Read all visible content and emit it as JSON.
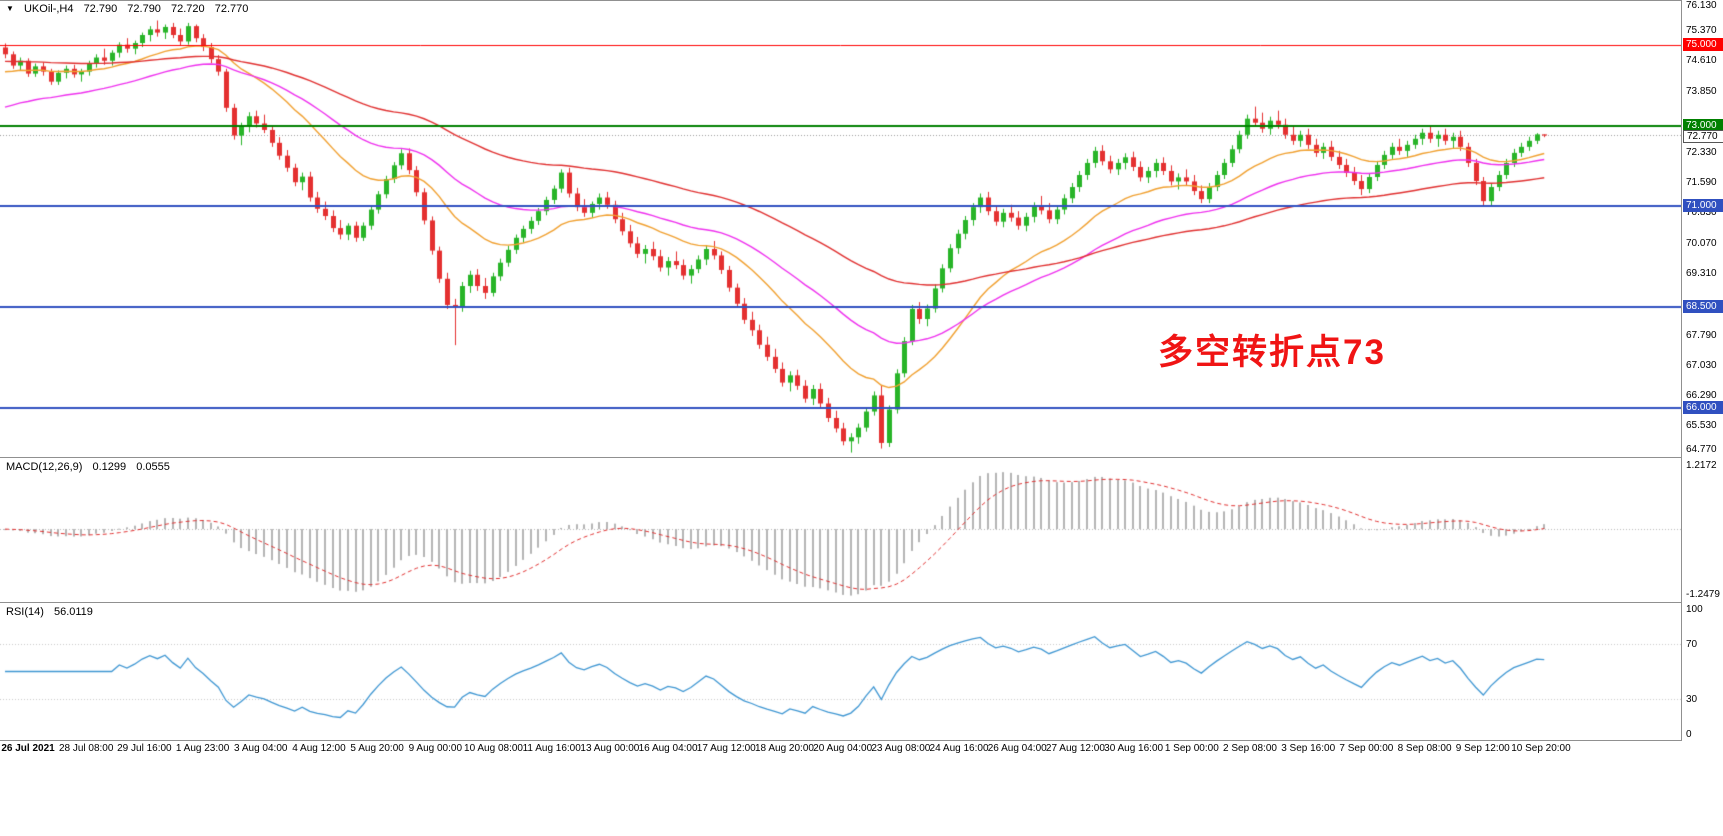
{
  "header": {
    "marker_icon": "▼",
    "symbol_label": "UKOil-,H4",
    "open": "72.790",
    "high": "72.790",
    "low": "72.720",
    "close": "72.770"
  },
  "annotation": {
    "text": "多空转折点73",
    "color": "#F01414"
  },
  "chart_data": {
    "type": "candlestick",
    "symbol": "UKOil-",
    "timeframe": "H4",
    "price_min": 64.77,
    "price_max": 76.13,
    "up_color": "#28B428",
    "down_color": "#E43030",
    "y_ticks": [
      {
        "v": 76.13,
        "label": "76.130"
      },
      {
        "v": 75.37,
        "label": "75.370"
      },
      {
        "v": 74.61,
        "label": "74.610"
      },
      {
        "v": 73.85,
        "label": "73.850"
      },
      {
        "v": 72.33,
        "label": "72.330"
      },
      {
        "v": 71.59,
        "label": "71.590"
      },
      {
        "v": 70.83,
        "label": "70.830"
      },
      {
        "v": 70.07,
        "label": "70.070"
      },
      {
        "v": 69.31,
        "label": "69.310"
      },
      {
        "v": 67.79,
        "label": "67.790"
      },
      {
        "v": 67.03,
        "label": "67.030"
      },
      {
        "v": 66.29,
        "label": "66.290"
      },
      {
        "v": 65.53,
        "label": "65.530"
      },
      {
        "v": 64.77,
        "label": "64.770"
      }
    ],
    "hlines": [
      {
        "price": 75.0,
        "label": "75.000",
        "color": "#FF0000",
        "width": 1
      },
      {
        "price": 73.0,
        "label": "73.000",
        "color": "#008000",
        "width": 2
      },
      {
        "price": 71.0,
        "label": "71.000",
        "color": "#3050C0",
        "width": 2
      },
      {
        "price": 68.5,
        "label": "68.500",
        "color": "#3050C0",
        "width": 2
      },
      {
        "price": 66.0,
        "label": "66.000",
        "color": "#3050C0",
        "width": 2
      }
    ],
    "current_price": {
      "value": 72.77,
      "label": "72.770"
    },
    "moving_averages": [
      {
        "period": 20,
        "color": "#F0A030",
        "seed": 74.3
      },
      {
        "period": 40,
        "color": "#EE30EE",
        "seed": 73.4
      },
      {
        "period": 80,
        "color": "#E03030",
        "seed": 74.6
      }
    ],
    "x_labels": [
      "26 Jul 2021",
      "28 Jul 08:00",
      "29 Jul 16:00",
      "1 Aug 23:00",
      "3 Aug 04:00",
      "4 Aug 12:00",
      "5 Aug 20:00",
      "9 Aug 00:00",
      "10 Aug 08:00",
      "11 Aug 16:00",
      "13 Aug 00:00",
      "16 Aug 04:00",
      "17 Aug 12:00",
      "18 Aug 20:00",
      "20 Aug 04:00",
      "23 Aug 08:00",
      "24 Aug 16:00",
      "26 Aug 04:00",
      "27 Aug 12:00",
      "30 Aug 16:00",
      "1 Sep 00:00",
      "2 Sep 08:00",
      "3 Sep 16:00",
      "7 Sep 00:00",
      "8 Sep 08:00",
      "9 Sep 12:00",
      "10 Sep 20:00"
    ],
    "candles": [
      [
        74.95,
        75.05,
        74.68,
        74.78
      ],
      [
        74.78,
        74.85,
        74.42,
        74.5
      ],
      [
        74.5,
        74.7,
        74.38,
        74.62
      ],
      [
        74.62,
        74.68,
        74.22,
        74.3
      ],
      [
        74.3,
        74.55,
        74.22,
        74.48
      ],
      [
        74.48,
        74.58,
        74.25,
        74.35
      ],
      [
        74.35,
        74.42,
        74.02,
        74.1
      ],
      [
        74.1,
        74.38,
        74.02,
        74.32
      ],
      [
        74.32,
        74.5,
        74.18,
        74.42
      ],
      [
        74.42,
        74.52,
        74.2,
        74.28
      ],
      [
        74.28,
        74.42,
        74.1,
        74.35
      ],
      [
        74.35,
        74.62,
        74.25,
        74.55
      ],
      [
        74.55,
        74.78,
        74.45,
        74.7
      ],
      [
        74.7,
        74.92,
        74.52,
        74.62
      ],
      [
        74.62,
        74.88,
        74.5,
        74.82
      ],
      [
        74.82,
        75.08,
        74.7,
        75.02
      ],
      [
        75.02,
        75.18,
        74.82,
        74.92
      ],
      [
        74.92,
        75.12,
        74.78,
        75.06
      ],
      [
        75.06,
        75.32,
        74.96,
        75.26
      ],
      [
        75.26,
        75.48,
        75.1,
        75.4
      ],
      [
        75.4,
        75.62,
        75.22,
        75.32
      ],
      [
        75.32,
        75.52,
        75.16,
        75.46
      ],
      [
        75.46,
        75.56,
        75.18,
        75.26
      ],
      [
        75.26,
        75.42,
        75.0,
        75.1
      ],
      [
        75.1,
        75.56,
        75.02,
        75.48
      ],
      [
        75.48,
        75.52,
        75.08,
        75.18
      ],
      [
        75.18,
        75.28,
        74.86,
        74.96
      ],
      [
        74.96,
        75.06,
        74.56,
        74.66
      ],
      [
        74.66,
        74.76,
        74.25,
        74.35
      ],
      [
        74.35,
        74.42,
        73.35,
        73.45
      ],
      [
        73.45,
        73.55,
        72.66,
        72.76
      ],
      [
        72.76,
        73.08,
        72.52,
        72.98
      ],
      [
        72.98,
        73.34,
        72.84,
        73.24
      ],
      [
        73.24,
        73.38,
        72.96,
        73.06
      ],
      [
        73.06,
        73.28,
        72.82,
        72.9
      ],
      [
        72.9,
        73.0,
        72.48,
        72.58
      ],
      [
        72.58,
        72.72,
        72.16,
        72.26
      ],
      [
        72.26,
        72.4,
        71.86,
        71.96
      ],
      [
        71.96,
        72.06,
        71.5,
        71.6
      ],
      [
        71.6,
        71.84,
        71.4,
        71.74
      ],
      [
        71.74,
        71.86,
        71.12,
        71.22
      ],
      [
        71.22,
        71.36,
        70.84,
        70.94
      ],
      [
        70.94,
        71.12,
        70.66,
        70.76
      ],
      [
        70.76,
        70.9,
        70.36,
        70.46
      ],
      [
        70.46,
        70.66,
        70.18,
        70.3
      ],
      [
        70.3,
        70.58,
        70.16,
        70.52
      ],
      [
        70.52,
        70.62,
        70.12,
        70.22
      ],
      [
        70.22,
        70.6,
        70.14,
        70.52
      ],
      [
        70.52,
        71.0,
        70.42,
        70.92
      ],
      [
        70.92,
        71.38,
        70.82,
        71.3
      ],
      [
        71.3,
        71.76,
        71.2,
        71.68
      ],
      [
        71.68,
        72.1,
        71.58,
        72.02
      ],
      [
        72.02,
        72.42,
        71.92,
        72.32
      ],
      [
        72.32,
        72.44,
        71.8,
        71.9
      ],
      [
        71.9,
        72.0,
        71.25,
        71.35
      ],
      [
        71.35,
        71.45,
        70.55,
        70.65
      ],
      [
        70.65,
        70.75,
        69.8,
        69.9
      ],
      [
        69.9,
        70.0,
        69.1,
        69.2
      ],
      [
        69.2,
        69.35,
        68.45,
        68.55
      ],
      [
        68.55,
        68.7,
        67.55,
        68.48
      ],
      [
        68.48,
        69.12,
        68.38,
        69.02
      ],
      [
        69.02,
        69.4,
        68.85,
        69.3
      ],
      [
        69.3,
        69.44,
        68.9,
        69.02
      ],
      [
        69.02,
        69.22,
        68.7,
        68.85
      ],
      [
        68.85,
        69.35,
        68.76,
        69.26
      ],
      [
        69.26,
        69.7,
        69.15,
        69.6
      ],
      [
        69.6,
        70.02,
        69.5,
        69.92
      ],
      [
        69.92,
        70.3,
        69.82,
        70.22
      ],
      [
        70.22,
        70.52,
        70.1,
        70.44
      ],
      [
        70.44,
        70.74,
        70.32,
        70.64
      ],
      [
        70.64,
        70.96,
        70.54,
        70.88
      ],
      [
        70.88,
        71.24,
        70.78,
        71.16
      ],
      [
        71.16,
        71.52,
        71.06,
        71.44
      ],
      [
        71.44,
        71.92,
        71.34,
        71.84
      ],
      [
        71.84,
        71.96,
        71.22,
        71.32
      ],
      [
        71.32,
        71.46,
        70.88,
        70.98
      ],
      [
        70.98,
        71.18,
        70.74,
        70.84
      ],
      [
        70.84,
        71.12,
        70.72,
        71.06
      ],
      [
        71.06,
        71.32,
        70.92,
        71.22
      ],
      [
        71.22,
        71.36,
        70.94,
        71.04
      ],
      [
        71.04,
        71.14,
        70.58,
        70.68
      ],
      [
        70.68,
        70.84,
        70.28,
        70.38
      ],
      [
        70.38,
        70.54,
        69.98,
        70.08
      ],
      [
        70.08,
        70.24,
        69.72,
        69.82
      ],
      [
        69.82,
        70.04,
        69.58,
        69.94
      ],
      [
        69.94,
        70.12,
        69.66,
        69.76
      ],
      [
        69.76,
        69.92,
        69.38,
        69.48
      ],
      [
        69.48,
        69.74,
        69.28,
        69.64
      ],
      [
        69.64,
        69.88,
        69.44,
        69.54
      ],
      [
        69.54,
        69.68,
        69.18,
        69.28
      ],
      [
        69.28,
        69.54,
        69.08,
        69.44
      ],
      [
        69.44,
        69.78,
        69.34,
        69.68
      ],
      [
        69.68,
        70.04,
        69.54,
        69.94
      ],
      [
        69.94,
        70.14,
        69.68,
        69.78
      ],
      [
        69.78,
        69.88,
        69.32,
        69.42
      ],
      [
        69.42,
        69.52,
        68.88,
        68.98
      ],
      [
        68.98,
        69.08,
        68.48,
        68.58
      ],
      [
        68.58,
        68.72,
        68.08,
        68.18
      ],
      [
        68.18,
        68.38,
        67.78,
        67.92
      ],
      [
        67.92,
        68.06,
        67.46,
        67.56
      ],
      [
        67.56,
        67.76,
        67.16,
        67.26
      ],
      [
        67.26,
        67.46,
        66.86,
        66.96
      ],
      [
        66.96,
        67.12,
        66.52,
        66.62
      ],
      [
        66.62,
        66.9,
        66.4,
        66.8
      ],
      [
        66.8,
        66.94,
        66.44,
        66.54
      ],
      [
        66.54,
        66.68,
        66.12,
        66.22
      ],
      [
        66.22,
        66.56,
        66.06,
        66.46
      ],
      [
        66.46,
        66.6,
        66.0,
        66.1
      ],
      [
        66.1,
        66.24,
        65.64,
        65.74
      ],
      [
        65.74,
        65.92,
        65.38,
        65.48
      ],
      [
        65.48,
        65.62,
        65.06,
        65.16
      ],
      [
        65.16,
        65.36,
        64.88,
        65.26
      ],
      [
        65.26,
        65.6,
        65.1,
        65.5
      ],
      [
        65.5,
        66.0,
        65.4,
        65.9
      ],
      [
        65.9,
        66.4,
        65.8,
        66.3
      ],
      [
        66.3,
        66.55,
        64.98,
        65.12
      ],
      [
        65.12,
        66.05,
        65.02,
        65.95
      ],
      [
        65.95,
        66.95,
        65.85,
        66.85
      ],
      [
        66.85,
        67.75,
        66.75,
        67.65
      ],
      [
        67.65,
        68.55,
        67.55,
        68.45
      ],
      [
        68.45,
        68.62,
        68.08,
        68.2
      ],
      [
        68.2,
        68.56,
        68.02,
        68.46
      ],
      [
        68.46,
        69.06,
        68.36,
        68.96
      ],
      [
        68.96,
        69.56,
        68.86,
        69.46
      ],
      [
        69.46,
        70.06,
        69.36,
        69.96
      ],
      [
        69.96,
        70.42,
        69.82,
        70.32
      ],
      [
        70.32,
        70.76,
        70.18,
        70.66
      ],
      [
        70.66,
        71.08,
        70.52,
        70.98
      ],
      [
        70.98,
        71.32,
        70.84,
        71.22
      ],
      [
        71.22,
        71.36,
        70.78,
        70.88
      ],
      [
        70.88,
        71.02,
        70.52,
        70.62
      ],
      [
        70.62,
        70.94,
        70.48,
        70.84
      ],
      [
        70.84,
        71.04,
        70.62,
        70.72
      ],
      [
        70.72,
        70.88,
        70.42,
        70.52
      ],
      [
        70.52,
        70.84,
        70.38,
        70.74
      ],
      [
        70.74,
        71.1,
        70.6,
        71.0
      ],
      [
        71.0,
        71.26,
        70.8,
        70.9
      ],
      [
        70.9,
        71.08,
        70.58,
        70.68
      ],
      [
        70.68,
        71.02,
        70.56,
        70.92
      ],
      [
        70.92,
        71.3,
        70.8,
        71.2
      ],
      [
        71.2,
        71.58,
        71.08,
        71.48
      ],
      [
        71.48,
        71.88,
        71.36,
        71.78
      ],
      [
        71.78,
        72.18,
        71.66,
        72.08
      ],
      [
        72.08,
        72.48,
        71.96,
        72.38
      ],
      [
        72.38,
        72.52,
        72.02,
        72.12
      ],
      [
        72.12,
        72.26,
        71.82,
        71.92
      ],
      [
        71.92,
        72.18,
        71.78,
        72.08
      ],
      [
        72.08,
        72.32,
        71.92,
        72.22
      ],
      [
        72.22,
        72.36,
        71.88,
        71.98
      ],
      [
        71.98,
        72.12,
        71.62,
        71.72
      ],
      [
        71.72,
        71.98,
        71.58,
        71.88
      ],
      [
        71.88,
        72.18,
        71.72,
        72.08
      ],
      [
        72.08,
        72.22,
        71.78,
        71.88
      ],
      [
        71.88,
        72.02,
        71.52,
        71.62
      ],
      [
        71.62,
        71.82,
        71.42,
        71.72
      ],
      [
        71.72,
        71.92,
        71.52,
        71.62
      ],
      [
        71.62,
        71.78,
        71.28,
        71.38
      ],
      [
        71.38,
        71.52,
        71.08,
        71.18
      ],
      [
        71.18,
        71.58,
        71.08,
        71.48
      ],
      [
        71.48,
        71.88,
        71.38,
        71.78
      ],
      [
        71.78,
        72.18,
        71.68,
        72.08
      ],
      [
        72.08,
        72.52,
        71.98,
        72.42
      ],
      [
        72.42,
        72.88,
        72.32,
        72.78
      ],
      [
        72.78,
        73.28,
        72.68,
        73.18
      ],
      [
        73.18,
        73.48,
        72.98,
        73.08
      ],
      [
        73.08,
        73.33,
        72.83,
        72.93
      ],
      [
        72.93,
        73.23,
        72.78,
        73.13
      ],
      [
        73.13,
        73.38,
        72.93,
        73.03
      ],
      [
        73.03,
        73.18,
        72.68,
        72.78
      ],
      [
        72.78,
        72.98,
        72.53,
        72.63
      ],
      [
        72.63,
        72.88,
        72.48,
        72.78
      ],
      [
        72.78,
        72.93,
        72.43,
        72.53
      ],
      [
        72.53,
        72.68,
        72.23,
        72.33
      ],
      [
        72.33,
        72.58,
        72.18,
        72.48
      ],
      [
        72.48,
        72.63,
        72.13,
        72.23
      ],
      [
        72.23,
        72.38,
        71.93,
        72.03
      ],
      [
        72.03,
        72.18,
        71.73,
        71.83
      ],
      [
        71.83,
        71.98,
        71.53,
        71.63
      ],
      [
        71.63,
        71.78,
        71.28,
        71.43
      ],
      [
        71.43,
        71.83,
        71.33,
        71.73
      ],
      [
        71.73,
        72.13,
        71.63,
        72.03
      ],
      [
        72.03,
        72.38,
        71.93,
        72.28
      ],
      [
        72.28,
        72.58,
        72.18,
        72.48
      ],
      [
        72.48,
        72.68,
        72.28,
        72.38
      ],
      [
        72.38,
        72.63,
        72.23,
        72.53
      ],
      [
        72.53,
        72.78,
        72.43,
        72.68
      ],
      [
        72.68,
        72.93,
        72.53,
        72.83
      ],
      [
        72.83,
        72.98,
        72.58,
        72.68
      ],
      [
        72.68,
        72.88,
        72.48,
        72.78
      ],
      [
        72.78,
        72.93,
        72.53,
        72.63
      ],
      [
        72.63,
        72.83,
        72.43,
        72.73
      ],
      [
        72.73,
        72.88,
        72.38,
        72.48
      ],
      [
        72.48,
        72.58,
        71.98,
        72.08
      ],
      [
        72.08,
        72.18,
        71.53,
        71.63
      ],
      [
        71.63,
        71.73,
        71.03,
        71.13
      ],
      [
        71.13,
        71.58,
        71.03,
        71.48
      ],
      [
        71.48,
        71.88,
        71.38,
        71.78
      ],
      [
        71.78,
        72.18,
        71.68,
        72.08
      ],
      [
        72.08,
        72.43,
        71.98,
        72.33
      ],
      [
        72.33,
        72.58,
        72.23,
        72.48
      ],
      [
        72.48,
        72.73,
        72.38,
        72.63
      ],
      [
        72.63,
        72.82,
        72.55,
        72.79
      ],
      [
        72.79,
        72.79,
        72.72,
        72.77
      ]
    ]
  },
  "macd_panel": {
    "label": "MACD(12,26,9)",
    "value_main": "0.1299",
    "value_signal": "0.0555",
    "fast": 12,
    "slow": 26,
    "signal": 9,
    "range": [
      -1.2479,
      1.2172
    ],
    "axis_max_label": "1.2172",
    "axis_min_label": "-1.2479",
    "hist_color": "#B4B4B4",
    "signal_color": "#E03030"
  },
  "rsi_panel": {
    "label": "RSI(14)",
    "value": "56.0119",
    "period": 14,
    "line_color": "#3E96D2",
    "level_color": "#C8C8C8",
    "levels": [
      {
        "v": 70
      },
      {
        "v": 30
      }
    ],
    "axis_ticks": [
      {
        "v": 100,
        "label": "100"
      },
      {
        "v": 70,
        "label": "70"
      },
      {
        "v": 30,
        "label": "30"
      },
      {
        "v": 0,
        "label": "0"
      }
    ]
  }
}
